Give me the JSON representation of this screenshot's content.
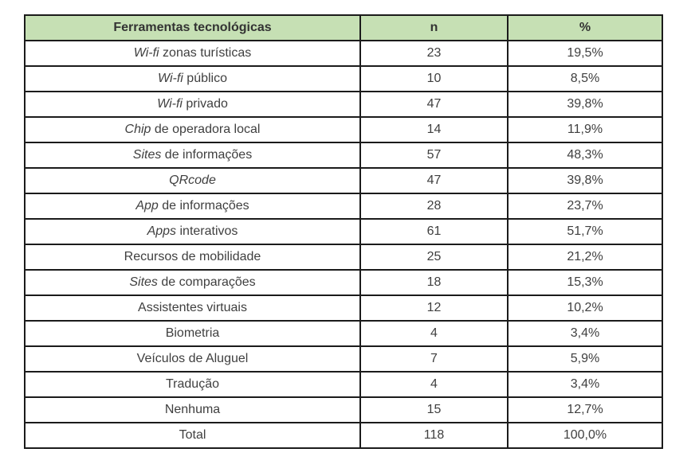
{
  "table": {
    "headers": [
      "Ferramentas tecnológicas",
      "n",
      "%"
    ],
    "rows": [
      {
        "label_italic": "Wi-fi",
        "label_rest": " zonas turísticas",
        "n": "23",
        "pct": "19,5%"
      },
      {
        "label_italic": "Wi-fi",
        "label_rest": " público",
        "n": "10",
        "pct": "8,5%"
      },
      {
        "label_italic": "Wi-fi",
        "label_rest": " privado",
        "n": "47",
        "pct": "39,8%"
      },
      {
        "label_italic": "Chip",
        "label_rest": " de operadora local",
        "n": "14",
        "pct": "11,9%"
      },
      {
        "label_italic": "Sites",
        "label_rest": " de informações",
        "n": "57",
        "pct": "48,3%"
      },
      {
        "label_italic": "QRcode",
        "label_rest": "",
        "n": "47",
        "pct": "39,8%"
      },
      {
        "label_italic": "App",
        "label_rest": " de informações",
        "n": "28",
        "pct": "23,7%"
      },
      {
        "label_italic": "Apps",
        "label_rest": " interativos",
        "n": "61",
        "pct": "51,7%"
      },
      {
        "label_italic": "",
        "label_rest": "Recursos de mobilidade",
        "n": "25",
        "pct": "21,2%"
      },
      {
        "label_italic": "Sites",
        "label_rest": " de comparações",
        "n": "18",
        "pct": "15,3%"
      },
      {
        "label_italic": "",
        "label_rest": "Assistentes virtuais",
        "n": "12",
        "pct": "10,2%"
      },
      {
        "label_italic": "",
        "label_rest": "Biometria",
        "n": "4",
        "pct": "3,4%"
      },
      {
        "label_italic": "",
        "label_rest": "Veículos de Aluguel",
        "n": "7",
        "pct": "5,9%"
      },
      {
        "label_italic": "",
        "label_rest": "Tradução",
        "n": "4",
        "pct": "3,4%"
      },
      {
        "label_italic": "",
        "label_rest": "Nenhuma",
        "n": "15",
        "pct": "12,7%"
      },
      {
        "label_italic": "",
        "label_rest": "Total",
        "n": "118",
        "pct": "100,0%"
      }
    ],
    "colors": {
      "header_bg": "#c6e0b4",
      "border": "#1b1b1b",
      "text": "#3f3f3f"
    }
  }
}
